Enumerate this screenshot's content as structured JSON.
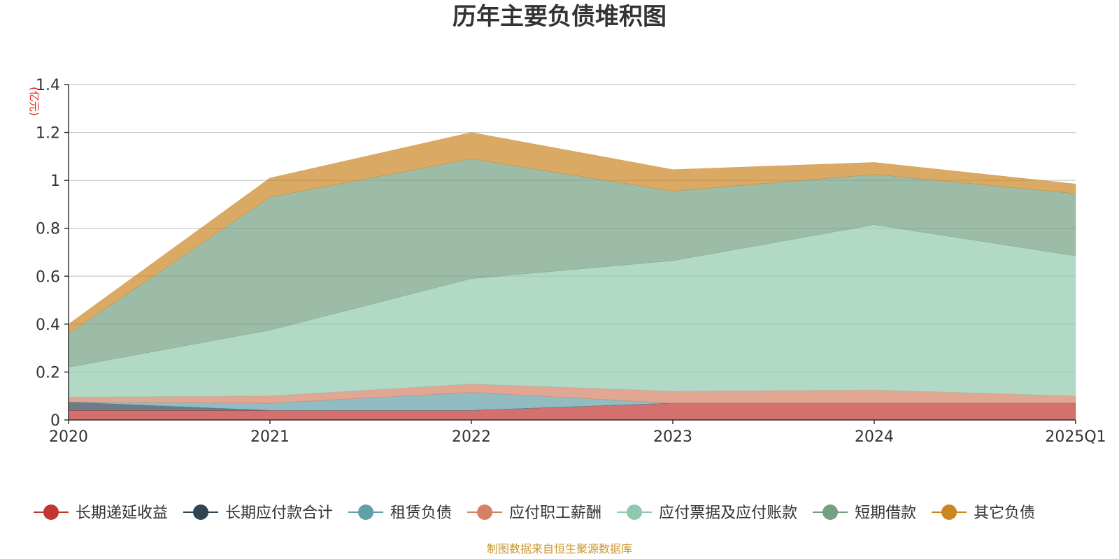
{
  "chart_data": {
    "type": "area",
    "stacked": true,
    "title": "历年主要负债堆积图",
    "ylabel": "(亿元)",
    "ylim": [
      0,
      1.4
    ],
    "yticks": [
      0,
      0.2,
      0.4,
      0.6,
      0.8,
      1,
      1.2,
      1.4
    ],
    "ytick_labels": [
      "0",
      "0.2",
      "0.4",
      "0.6",
      "0.8",
      "1",
      "1.2",
      "1.4"
    ],
    "categories": [
      "2020",
      "2021",
      "2022",
      "2023",
      "2024",
      "2025Q1"
    ],
    "grid": true,
    "legend_position": "bottom",
    "series": [
      {
        "name": "长期递延收益",
        "color": "#c23531",
        "values": [
          0.04,
          0.04,
          0.04,
          0.07,
          0.07,
          0.07
        ]
      },
      {
        "name": "长期应付款合计",
        "color": "#2f4554",
        "values": [
          0.035,
          0.0,
          0.0,
          0.0,
          0.0,
          0.0
        ]
      },
      {
        "name": "租赁负债",
        "color": "#61a0a8",
        "values": [
          0.0,
          0.03,
          0.075,
          0.0,
          0.0,
          0.0
        ]
      },
      {
        "name": "应付职工薪酬",
        "color": "#d48265",
        "values": [
          0.02,
          0.03,
          0.035,
          0.05,
          0.055,
          0.03
        ]
      },
      {
        "name": "应付票据及应付账款",
        "color": "#91c7ae",
        "values": [
          0.125,
          0.275,
          0.44,
          0.545,
          0.69,
          0.585
        ]
      },
      {
        "name": "短期借款",
        "color": "#749f83",
        "values": [
          0.14,
          0.555,
          0.5,
          0.29,
          0.21,
          0.26
        ]
      },
      {
        "name": "其它负债",
        "color": "#ca8622",
        "values": [
          0.04,
          0.08,
          0.11,
          0.09,
          0.05,
          0.04
        ]
      }
    ]
  },
  "footer": {
    "source": "制图数据来自恒生聚源数据库"
  }
}
